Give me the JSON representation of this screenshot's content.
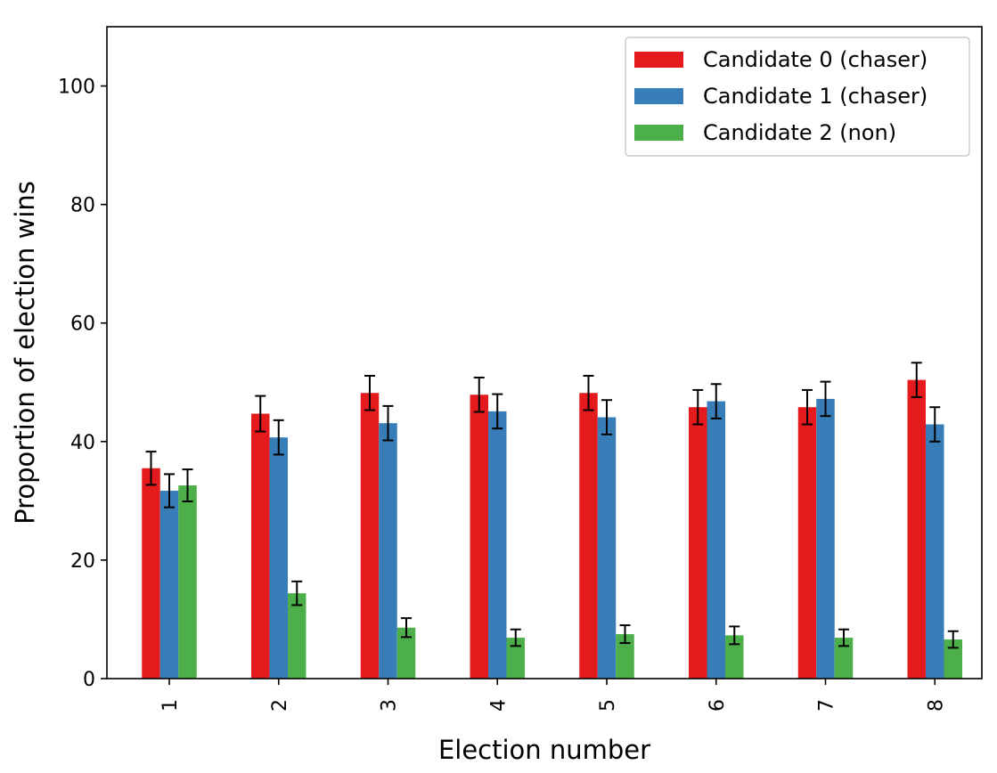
{
  "chart_data": {
    "type": "bar",
    "xlabel": "Election number",
    "ylabel": "Proportion of election wins",
    "ylim": [
      0,
      110
    ],
    "yticks": [
      0,
      20,
      40,
      60,
      80,
      100
    ],
    "categories": [
      "1",
      "2",
      "3",
      "4",
      "5",
      "6",
      "7",
      "8"
    ],
    "legend_position": "top-right",
    "grid": false,
    "series": [
      {
        "name": "Candidate 0 (chaser)",
        "color": "#e41a1c",
        "values": [
          35.5,
          44.7,
          48.2,
          47.9,
          48.2,
          45.8,
          45.8,
          50.4
        ],
        "errors": [
          2.8,
          3.0,
          2.9,
          2.9,
          2.9,
          2.9,
          2.9,
          2.9
        ]
      },
      {
        "name": "Candidate 1 (chaser)",
        "color": "#377eb8",
        "values": [
          31.7,
          40.7,
          43.1,
          45.1,
          44.1,
          46.8,
          47.2,
          42.9
        ],
        "errors": [
          2.8,
          2.9,
          2.9,
          2.9,
          2.9,
          2.9,
          2.9,
          2.9
        ]
      },
      {
        "name": "Candidate 2 (non)",
        "color": "#4daf4a",
        "values": [
          32.6,
          14.4,
          8.6,
          6.9,
          7.5,
          7.3,
          6.9,
          6.6
        ],
        "errors": [
          2.7,
          2.0,
          1.6,
          1.4,
          1.5,
          1.5,
          1.4,
          1.4
        ]
      }
    ]
  }
}
